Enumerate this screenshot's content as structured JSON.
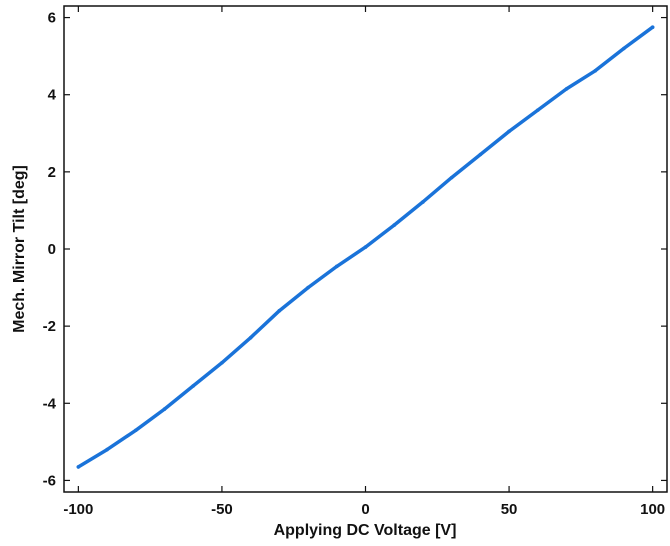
{
  "chart_data": {
    "type": "line",
    "title": "",
    "xlabel": "Applying DC Voltage [V]",
    "ylabel": "Mech. Mirror Tilt [deg]",
    "xlim": [
      -105,
      105
    ],
    "ylim": [
      -6.3,
      6.3
    ],
    "xticks": [
      -100,
      -50,
      0,
      50,
      100
    ],
    "yticks": [
      -6,
      -4,
      -2,
      0,
      2,
      4,
      6
    ],
    "xtick_labels": [
      "-100",
      "-50",
      "0",
      "50",
      "100"
    ],
    "ytick_labels": [
      "-6",
      "-4",
      "-2",
      "0",
      "2",
      "4",
      "6"
    ],
    "grid": false,
    "legend": "none",
    "series": [
      {
        "color": "#1a73d9",
        "x": [
          -100,
          -90,
          -80,
          -70,
          -60,
          -50,
          -40,
          -30,
          -20,
          -10,
          0,
          10,
          20,
          30,
          40,
          50,
          60,
          70,
          80,
          90,
          100
        ],
        "y": [
          -5.65,
          -5.2,
          -4.7,
          -4.15,
          -3.55,
          -2.95,
          -2.3,
          -1.6,
          -1.0,
          -0.45,
          0.05,
          0.62,
          1.22,
          1.85,
          2.45,
          3.05,
          3.6,
          4.15,
          4.62,
          5.2,
          5.75
        ]
      }
    ]
  }
}
